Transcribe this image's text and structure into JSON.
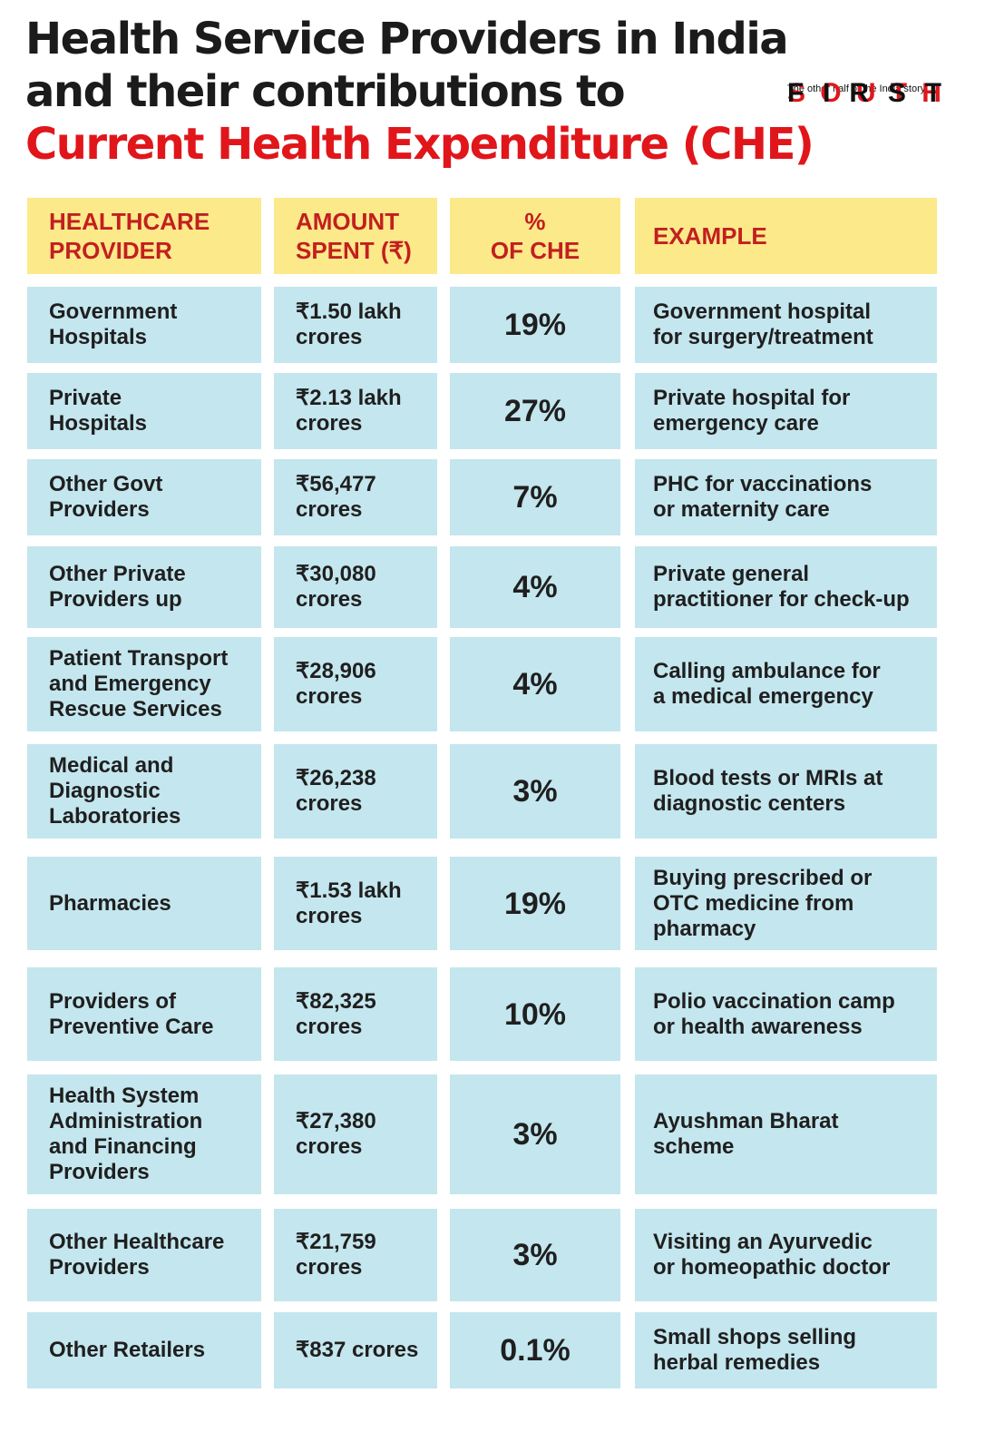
{
  "title": {
    "line1": "Health Service Providers in India",
    "line2": "and their contributions to",
    "line3": "Current Health Expenditure (CHE)"
  },
  "logo": {
    "word1": [
      "S",
      "O",
      "U",
      "T",
      "H"
    ],
    "word2": [
      "F",
      "I",
      "R",
      "S",
      "T"
    ],
    "tagline": "The other half of the India story"
  },
  "colors": {
    "header_bg": "#fce98a",
    "header_text": "#c21f1f",
    "cell_bg": "#c4e6ee",
    "accent": "#e0161b"
  },
  "table": {
    "headers": [
      "HEALTHCARE\nPROVIDER",
      "AMOUNT\nSPENT (₹)",
      "%\nOF CHE",
      "EXAMPLE"
    ],
    "rows": [
      {
        "provider": "Government\nHospitals",
        "amount": "₹1.50 lakh\ncrores",
        "pct": "19",
        "example": "Government hospital\nfor surgery/treatment"
      },
      {
        "provider": "Private\nHospitals",
        "amount": "₹2.13 lakh\ncrores",
        "pct": "27",
        "example": "Private hospital for\nemergency care"
      },
      {
        "provider": "Other Govt\nProviders",
        "amount": "₹56,477\ncrores",
        "pct": "7",
        "example": "PHC for vaccinations\nor maternity care"
      },
      {
        "provider": "Other Private\nProviders up",
        "amount": "₹30,080\ncrores",
        "pct": "4",
        "example": "Private general\npractitioner for check-up"
      },
      {
        "provider": "Patient Transport\nand Emergency\nRescue Services",
        "amount": "₹28,906\ncrores",
        "pct": "4",
        "example": "Calling ambulance for\na medical emergency"
      },
      {
        "provider": "Medical and\nDiagnostic\nLaboratories",
        "amount": "₹26,238\ncrores",
        "pct": "3",
        "example": "Blood tests or MRIs at\ndiagnostic centers"
      },
      {
        "provider": "Pharmacies",
        "amount": "₹1.53 lakh\ncrores",
        "pct": "19",
        "example": "Buying prescribed or\nOTC medicine from\npharmacy"
      },
      {
        "provider": "Providers of\nPreventive Care",
        "amount": "₹82,325\ncrores",
        "pct": "10",
        "example": "Polio vaccination camp\nor health awareness"
      },
      {
        "provider": "Health System\nAdministration\nand Financing\nProviders",
        "amount": "₹27,380\ncrores",
        "pct": "3",
        "example": "Ayushman Bharat\nscheme"
      },
      {
        "provider": "Other Healthcare\nProviders",
        "amount": "₹21,759\ncrores",
        "pct": "3",
        "example": "Visiting an Ayurvedic\nor homeopathic doctor"
      },
      {
        "provider": "Other Retailers",
        "amount": "₹837 crores",
        "pct": "0.1",
        "example": "Small shops selling\nherbal remedies"
      }
    ],
    "pct_symbol": "%"
  }
}
